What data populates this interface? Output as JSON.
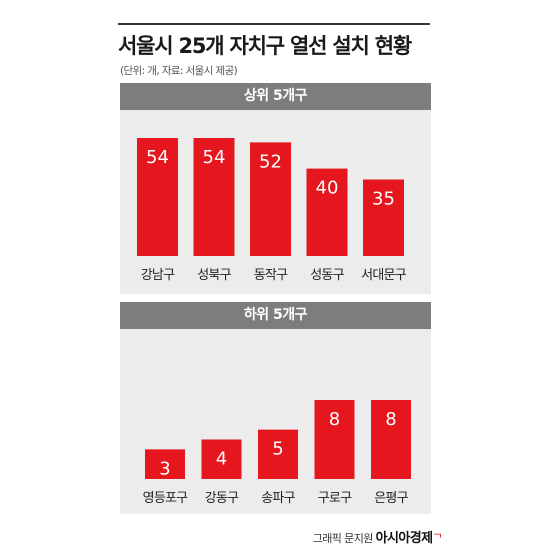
{
  "title": "서울시 25개 자치구 열선 설치 현황",
  "source_note": "(단위: 개, 자료: 서울시 제공)",
  "credit": {
    "graphic": "그래픽 문지원",
    "brand": "아시아경제",
    "mark": "ᄀ"
  },
  "colors": {
    "bar": "#e5161d",
    "panel_bg": "#ececec",
    "header_bg": "#7d7d7d"
  },
  "chart_data": [
    {
      "type": "bar",
      "title": "상위 5개구",
      "categories": [
        "강남구",
        "성북구",
        "동작구",
        "성동구",
        "서대문구"
      ],
      "values": [
        54,
        54,
        52,
        40,
        35
      ],
      "xlabel": "",
      "ylabel": "",
      "ylim": [
        0,
        54
      ],
      "grid": false,
      "legend": "none"
    },
    {
      "type": "bar",
      "title": "하위 5개구",
      "categories": [
        "영등포구",
        "강동구",
        "송파구",
        "구로구",
        "은평구"
      ],
      "values": [
        3,
        4,
        5,
        8,
        8
      ],
      "xlabel": "",
      "ylabel": "",
      "ylim": [
        0,
        8
      ],
      "grid": false,
      "legend": "none"
    }
  ]
}
